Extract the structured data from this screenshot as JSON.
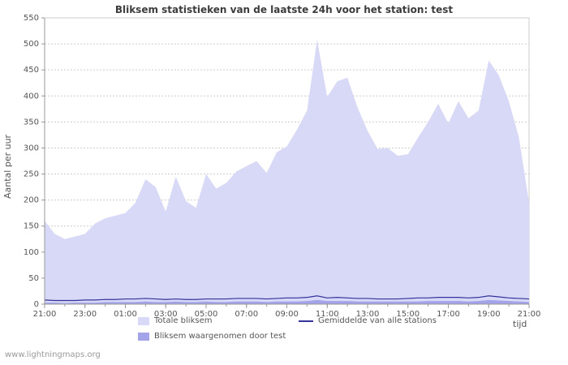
{
  "page": {
    "watermark": "www.lightningmaps.org"
  },
  "chart_data": {
    "type": "area",
    "title": "Bliksem statistieken van de laatste 24h voor het station: test",
    "ylabel": "Aantal per uur",
    "xlabel": "tijd",
    "ylim": [
      0,
      550
    ],
    "y_ticks": [
      0,
      50,
      100,
      150,
      200,
      250,
      300,
      350,
      400,
      450,
      500,
      550
    ],
    "grid": true,
    "legend_position": "bottom",
    "x": [
      "21:00",
      "21:30",
      "22:00",
      "22:30",
      "23:00",
      "23:30",
      "00:00",
      "00:30",
      "01:00",
      "01:30",
      "02:00",
      "02:30",
      "03:00",
      "03:30",
      "04:00",
      "04:30",
      "05:00",
      "05:30",
      "06:00",
      "06:30",
      "07:00",
      "07:30",
      "08:00",
      "08:30",
      "09:00",
      "09:30",
      "10:00",
      "10:30",
      "11:00",
      "11:30",
      "12:00",
      "12:30",
      "13:00",
      "13:30",
      "14:00",
      "14:30",
      "15:00",
      "15:30",
      "16:00",
      "16:30",
      "17:00",
      "17:30",
      "18:00",
      "18:30",
      "19:00",
      "19:30",
      "20:00",
      "20:30",
      "21:00"
    ],
    "x_tick_every": 4,
    "x_tick_minor": 2,
    "series": [
      {
        "name": "Totale bliksem",
        "type": "area",
        "values": [
          160,
          135,
          125,
          130,
          135,
          155,
          165,
          170,
          175,
          195,
          240,
          225,
          178,
          245,
          198,
          185,
          250,
          222,
          233,
          255,
          265,
          275,
          252,
          292,
          303,
          335,
          372,
          508,
          398,
          428,
          435,
          378,
          333,
          298,
          300,
          285,
          288,
          320,
          350,
          385,
          347,
          390,
          357,
          372,
          468,
          440,
          390,
          320,
          195
        ]
      },
      {
        "name": "Gemiddelde van alle stations",
        "type": "line",
        "values": [
          8,
          7,
          7,
          7,
          8,
          8,
          9,
          9,
          10,
          10,
          11,
          10,
          9,
          10,
          9,
          9,
          10,
          10,
          10,
          11,
          11,
          11,
          10,
          11,
          12,
          12,
          13,
          16,
          12,
          13,
          12,
          11,
          11,
          10,
          10,
          10,
          11,
          12,
          12,
          13,
          13,
          13,
          12,
          13,
          16,
          14,
          12,
          11,
          10
        ]
      },
      {
        "name": "Bliksem waargenomen door test",
        "type": "area",
        "values": [
          3,
          3,
          2,
          3,
          3,
          3,
          4,
          4,
          4,
          4,
          5,
          4,
          4,
          5,
          4,
          4,
          5,
          4,
          4,
          5,
          5,
          5,
          4,
          5,
          5,
          5,
          6,
          8,
          6,
          6,
          6,
          5,
          5,
          5,
          5,
          5,
          5,
          5,
          6,
          6,
          6,
          6,
          5,
          6,
          8,
          7,
          6,
          5,
          4
        ]
      }
    ],
    "colors": {
      "total": "#d8d8f7",
      "station": "#a3a3ea",
      "average": "#333399",
      "grid": "#cccccc",
      "axis": "#999999",
      "text": "#555555",
      "title": "#3c3c3c"
    }
  }
}
